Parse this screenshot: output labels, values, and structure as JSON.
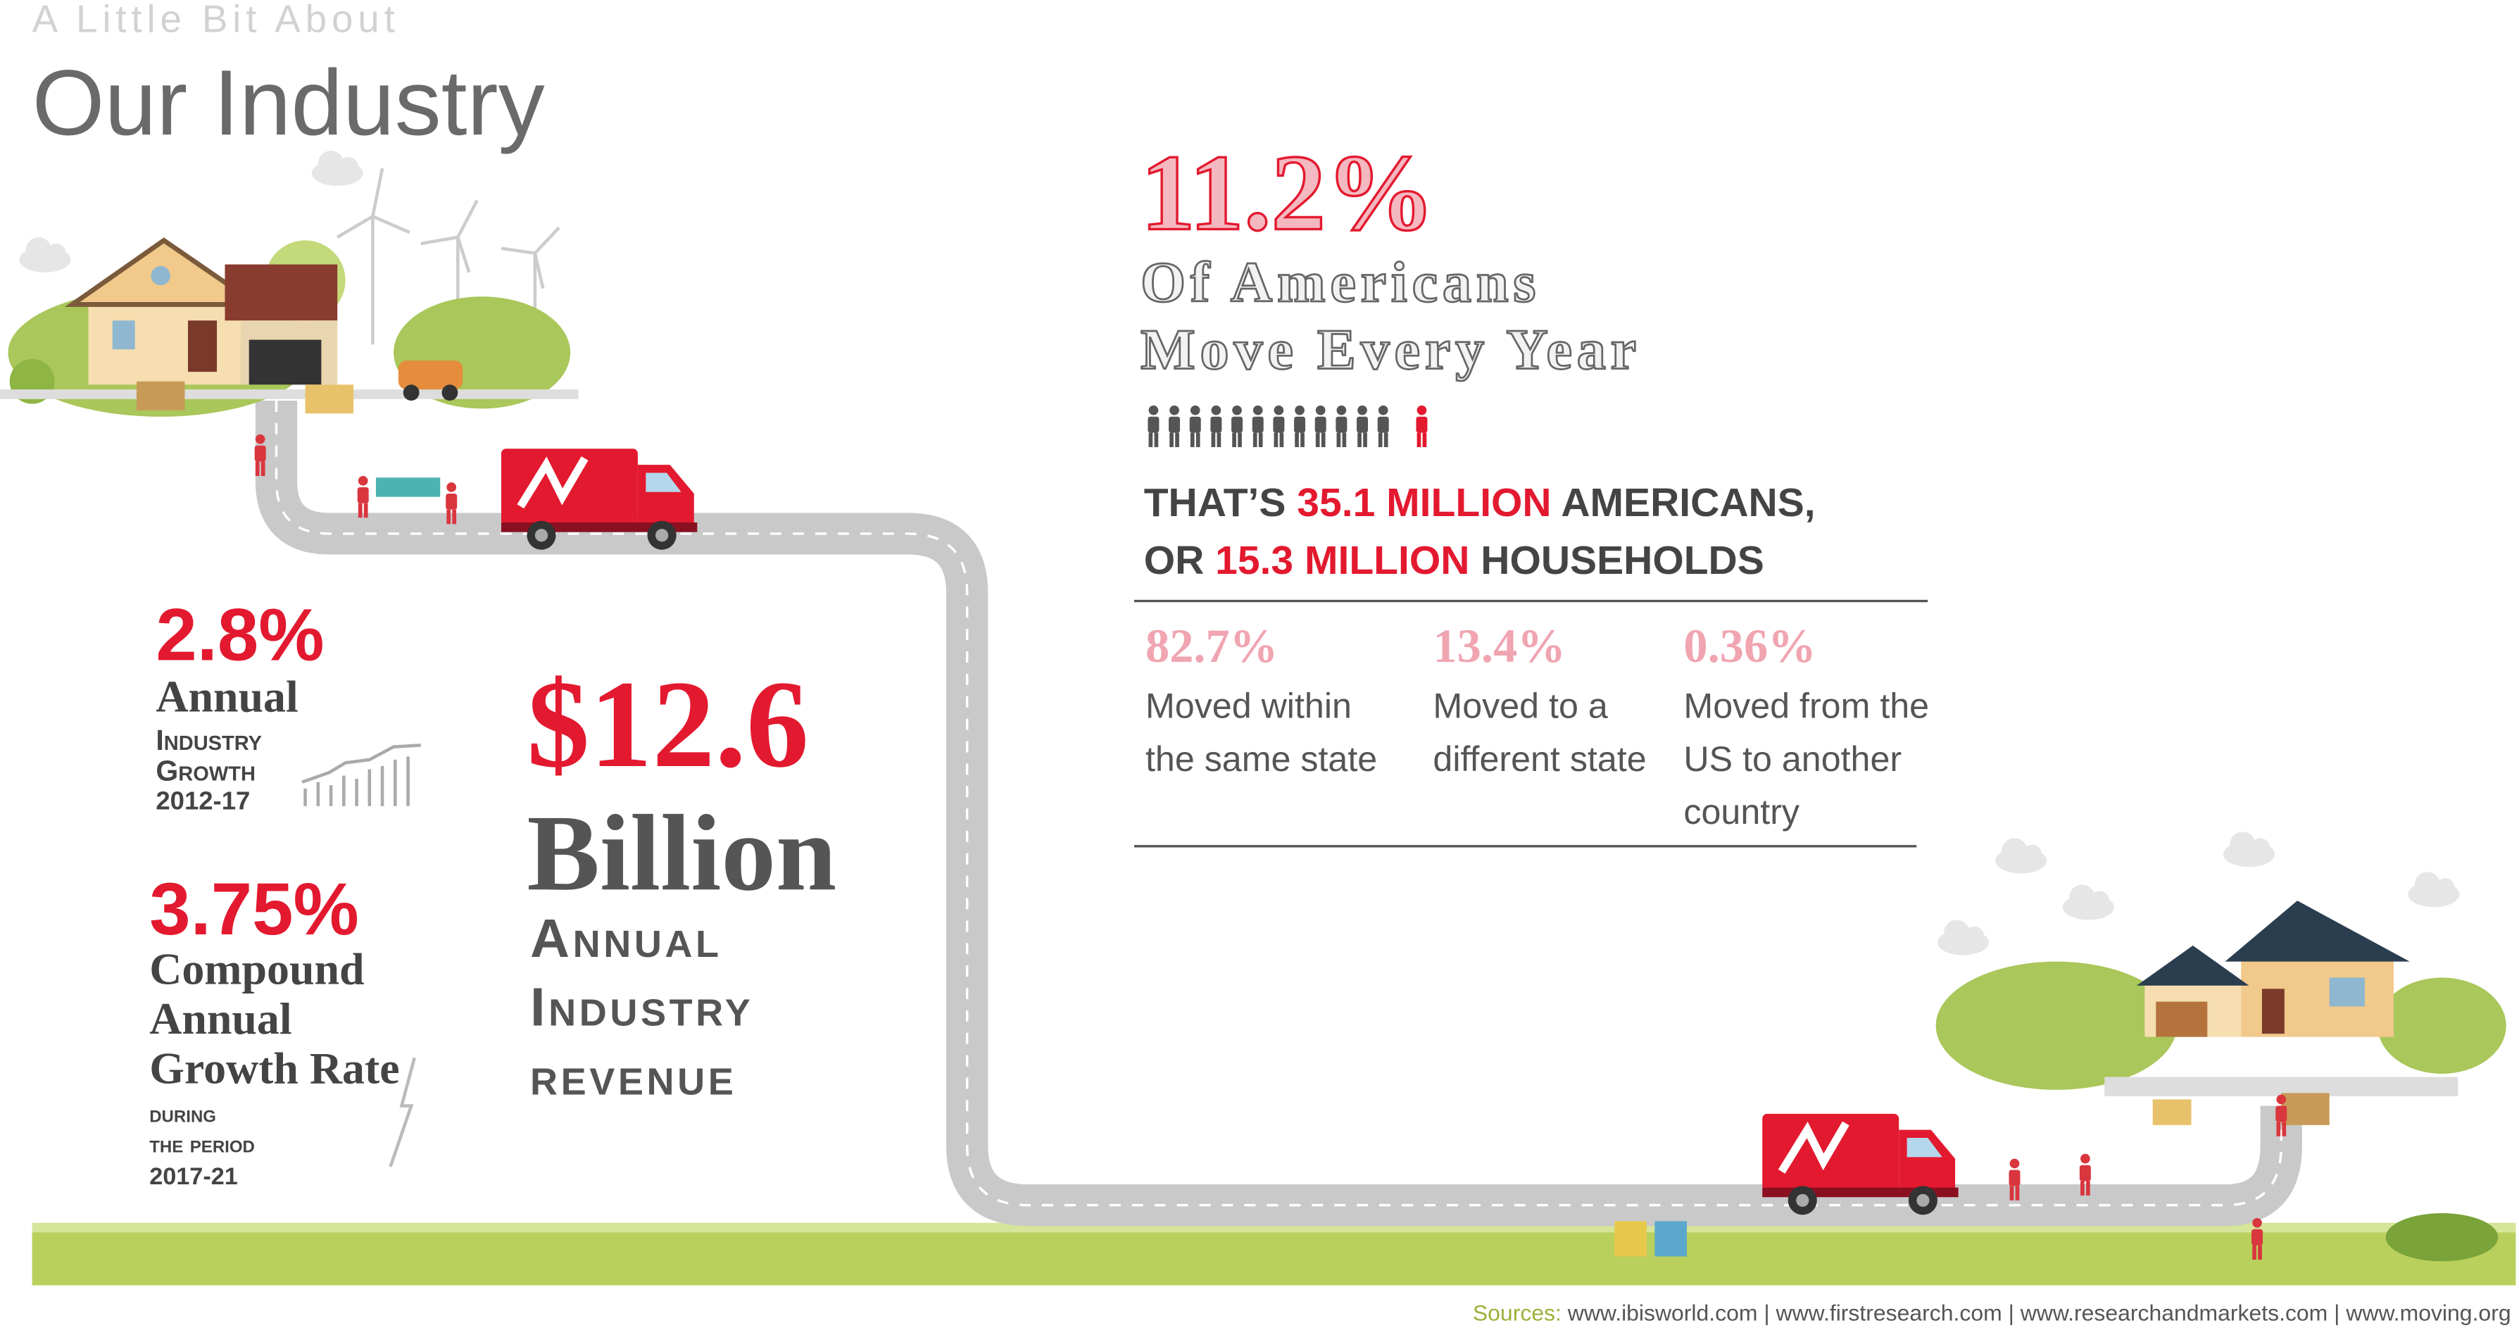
{
  "header": {
    "kicker": "A Little Bit About",
    "title": "Our Industry"
  },
  "headline": {
    "stat": "11.2%",
    "lines": [
      "Of Americans",
      "Move Every Year"
    ]
  },
  "detail": {
    "line1": [
      "THAT’S ",
      "35.1 MILLION",
      " AMERICANS,"
    ],
    "line2": [
      "OR ",
      "15.3 MILLION",
      " HOUSEHOLDS"
    ]
  },
  "breakdown": [
    {
      "stat": "82.7%",
      "lines": [
        "Moved within",
        "the same state"
      ]
    },
    {
      "stat": "13.4%",
      "lines": [
        "Moved to a",
        "different state"
      ]
    },
    {
      "stat": "0.36%",
      "lines": [
        "Moved from the",
        "US to another",
        "country"
      ]
    }
  ],
  "growth": {
    "stat": "2.8%",
    "lines": [
      "Annual",
      "Industry",
      "Growth",
      "2012-17"
    ]
  },
  "cagr": {
    "stat": "3.75%",
    "lines": [
      "Compound",
      "Annual",
      "Growth Rate"
    ],
    "period": [
      "during",
      "the period",
      "2017-21"
    ]
  },
  "revenue": {
    "stat": "$12.6",
    "unit": "Billion",
    "lines": [
      "Annual",
      "Industry",
      "revenue"
    ]
  },
  "sources": {
    "label": "Sources:",
    "items": [
      "www.ibisworld.com",
      "www.firstresearch.com",
      "www.researchandmarkets.com",
      "www.moving.org"
    ]
  }
}
